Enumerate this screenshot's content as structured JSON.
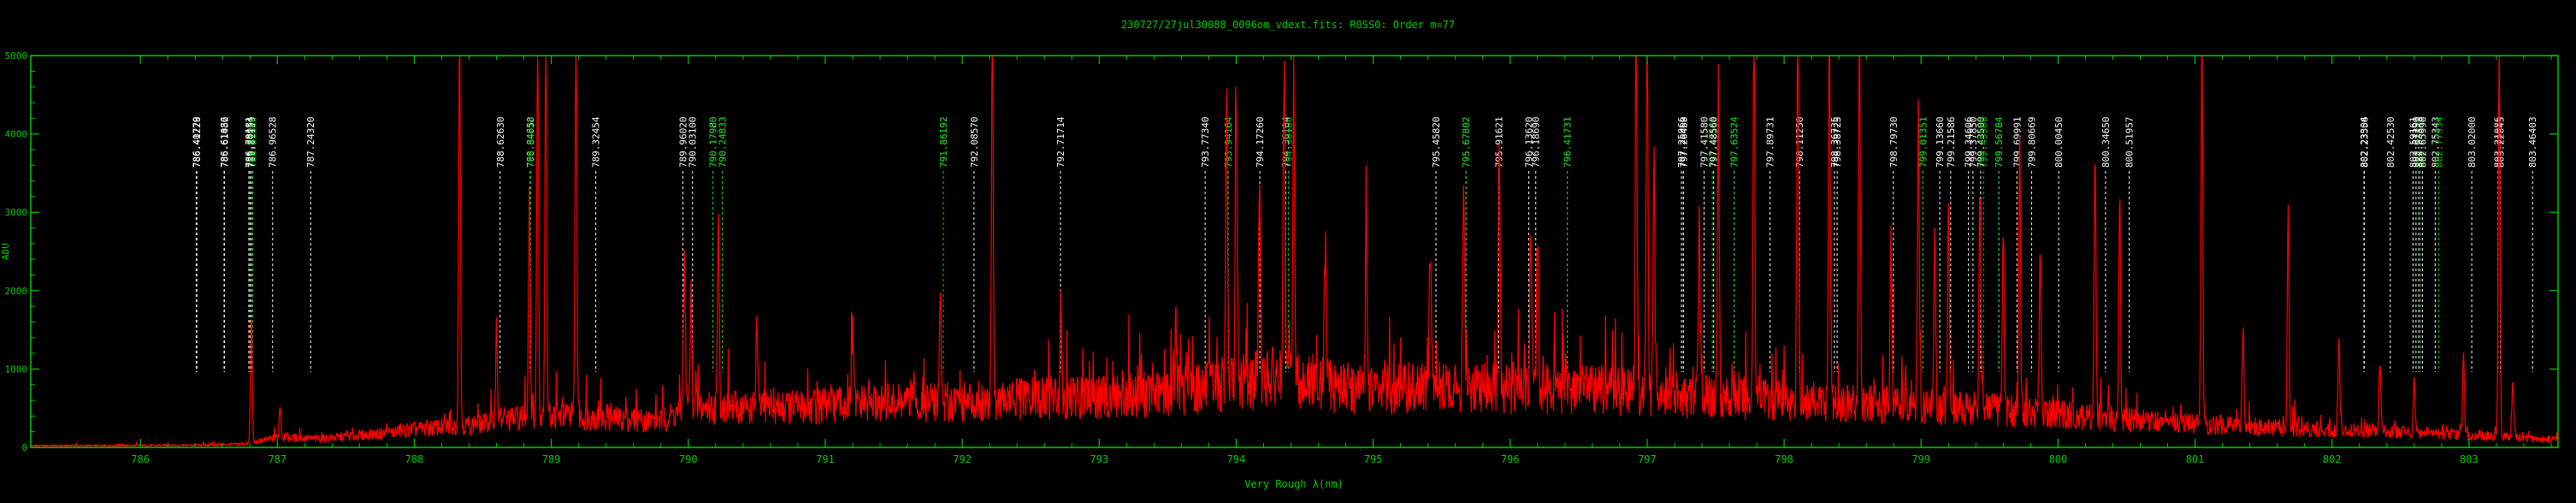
{
  "chart_data": {
    "type": "line",
    "title": "230727/27jul30088_0096om_vdext.fits: R0SS0: Order m=77",
    "xlabel": "Very Rough λ(nm)",
    "ylabel": "ADU",
    "xlim": [
      785.2,
      803.65
    ],
    "ylim": [
      0,
      5000
    ],
    "x_ticks": [
      "786",
      "787",
      "788",
      "789",
      "790",
      "791",
      "792",
      "793",
      "794",
      "795",
      "796",
      "797",
      "798",
      "799",
      "800",
      "801",
      "802",
      "803"
    ],
    "y_ticks": [
      "0",
      "1000",
      "2000",
      "3000",
      "4000",
      "5000"
    ],
    "grid": false,
    "colors": {
      "background": "#000000",
      "axes": "#00cc00",
      "spectrum": "#ff0000",
      "line_white": "#ffffff",
      "line_green": "#00cc00"
    },
    "annotations": [
      {
        "wl": 786.40779,
        "label": "786.40779",
        "color": "white"
      },
      {
        "wl": 786.41228,
        "label": "786.41228",
        "color": "white"
      },
      {
        "wl": 786.61086,
        "label": "786.61086",
        "color": "white"
      },
      {
        "wl": 786.61432,
        "label": "786.61432",
        "color": "white"
      },
      {
        "wl": 786.79181,
        "label": "786.79181",
        "color": "white"
      },
      {
        "wl": 786.80054,
        "label": "786.80054",
        "color": "white"
      },
      {
        "wl": 786.81159,
        "label": "786.81159",
        "color": "white"
      },
      {
        "wl": 786.81956,
        "label": "786.81956",
        "color": "green"
      },
      {
        "wl": 786.96528,
        "label": "786.96528",
        "color": "white"
      },
      {
        "wl": 787.2432,
        "label": "787.24320",
        "color": "white"
      },
      {
        "wl": 788.6263,
        "label": "788.62630",
        "color": "white"
      },
      {
        "wl": 788.84658,
        "label": "788.84658",
        "color": "white"
      },
      {
        "wl": 788.84925,
        "label": "788.84925",
        "color": "green"
      },
      {
        "wl": 789.32454,
        "label": "789.32454",
        "color": "white"
      },
      {
        "wl": 789.9602,
        "label": "789.96020",
        "color": "white"
      },
      {
        "wl": 790.031,
        "label": "790.03100",
        "color": "white"
      },
      {
        "wl": 790.1798,
        "label": "790.17980",
        "color": "white"
      },
      {
        "wl": 790.1795,
        "label": "790.17950",
        "color": "green"
      },
      {
        "wl": 790.24833,
        "label": "790.24833",
        "color": "white"
      },
      {
        "wl": 790.24833,
        "label": "790.24833",
        "color": "green"
      },
      {
        "wl": 791.86192,
        "label": "791.86192",
        "color": "white"
      },
      {
        "wl": 791.86192,
        "label": "791.86192",
        "color": "green"
      },
      {
        "wl": 792.0857,
        "label": "792.08570",
        "color": "white"
      },
      {
        "wl": 792.71714,
        "label": "792.71714",
        "color": "white"
      },
      {
        "wl": 793.7734,
        "label": "793.77340",
        "color": "white"
      },
      {
        "wl": 793.94164,
        "label": "793.94164",
        "color": "white"
      },
      {
        "wl": 793.94164,
        "label": "793.94164",
        "color": "green"
      },
      {
        "wl": 794.1726,
        "label": "794.17260",
        "color": "white"
      },
      {
        "wl": 794.36104,
        "label": "794.36104",
        "color": "white"
      },
      {
        "wl": 794.38106,
        "label": "794.38106",
        "color": "green"
      },
      {
        "wl": 795.4582,
        "label": "795.45820",
        "color": "white"
      },
      {
        "wl": 795.67802,
        "label": "795.67802",
        "color": "white"
      },
      {
        "wl": 795.67802,
        "label": "795.67802",
        "color": "green"
      },
      {
        "wl": 795.91621,
        "label": "795.91621",
        "color": "white"
      },
      {
        "wl": 796.1362,
        "label": "796.13620",
        "color": "white"
      },
      {
        "wl": 796.1869,
        "label": "796.18690",
        "color": "white"
      },
      {
        "wl": 796.41731,
        "label": "796.41731",
        "color": "white"
      },
      {
        "wl": 796.41731,
        "label": "796.41731",
        "color": "green"
      },
      {
        "wl": 797.25066,
        "label": "797.25066",
        "color": "white"
      },
      {
        "wl": 797.2645,
        "label": "797.26450",
        "color": "white"
      },
      {
        "wl": 797.26463,
        "label": "797.26463",
        "color": "white"
      },
      {
        "wl": 797.4158,
        "label": "797.41580",
        "color": "white"
      },
      {
        "wl": 797.47568,
        "label": "797.47568",
        "color": "green"
      },
      {
        "wl": 797.4856,
        "label": "797.48560",
        "color": "white"
      },
      {
        "wl": 797.63524,
        "label": "797.63524",
        "color": "white"
      },
      {
        "wl": 797.63524,
        "label": "797.63524",
        "color": "green"
      },
      {
        "wl": 797.89731,
        "label": "797.89731",
        "color": "white"
      },
      {
        "wl": 798.1125,
        "label": "798.11250",
        "color": "white"
      },
      {
        "wl": 798.36735,
        "label": "798.36735",
        "color": "white"
      },
      {
        "wl": 798.38725,
        "label": "798.38725",
        "color": "white"
      },
      {
        "wl": 798.7973,
        "label": "798.79730",
        "color": "white"
      },
      {
        "wl": 799.01351,
        "label": "799.01351",
        "color": "white"
      },
      {
        "wl": 799.01351,
        "label": "799.01351",
        "color": "green"
      },
      {
        "wl": 799.1366,
        "label": "799.13660",
        "color": "white"
      },
      {
        "wl": 799.21586,
        "label": "799.21586",
        "color": "white"
      },
      {
        "wl": 799.34606,
        "label": "799.34606",
        "color": "white"
      },
      {
        "wl": 799.3785,
        "label": "799.37850",
        "color": "white"
      },
      {
        "wl": 799.435,
        "label": "799.43500",
        "color": "white"
      },
      {
        "wl": 799.45568,
        "label": "799.45568",
        "color": "green"
      },
      {
        "wl": 799.56784,
        "label": "799.56784",
        "color": "white"
      },
      {
        "wl": 799.56784,
        "label": "799.56784",
        "color": "green"
      },
      {
        "wl": 799.69991,
        "label": "799.69991",
        "color": "white"
      },
      {
        "wl": 799.80669,
        "label": "799.80669",
        "color": "white"
      },
      {
        "wl": 800.0045,
        "label": "800.00450",
        "color": "white"
      },
      {
        "wl": 800.3465,
        "label": "800.34650",
        "color": "white"
      },
      {
        "wl": 800.51957,
        "label": "800.51957",
        "color": "white"
      },
      {
        "wl": 802.23304,
        "label": "802.23304",
        "color": "white"
      },
      {
        "wl": 802.23556,
        "label": "802.23556",
        "color": "white"
      },
      {
        "wl": 802.4253,
        "label": "802.42530",
        "color": "white"
      },
      {
        "wl": 802.59161,
        "label": "802.59161",
        "color": "white"
      },
      {
        "wl": 802.6129,
        "label": "802.61290",
        "color": "white"
      },
      {
        "wl": 802.6334,
        "label": "802.63340",
        "color": "white"
      },
      {
        "wl": 802.64505,
        "label": "802.64505",
        "color": "green"
      },
      {
        "wl": 802.6599,
        "label": "802.65990",
        "color": "white"
      },
      {
        "wl": 802.75343,
        "label": "802.75343",
        "color": "white"
      },
      {
        "wl": 802.77934,
        "label": "802.77934",
        "color": "green"
      },
      {
        "wl": 803.02,
        "label": "803.02000",
        "color": "white"
      },
      {
        "wl": 803.21086,
        "label": "803.21086",
        "color": "white"
      },
      {
        "wl": 803.22845,
        "label": "803.22845",
        "color": "white"
      },
      {
        "wl": 803.46403,
        "label": "803.46403",
        "color": "white"
      }
    ],
    "series": [
      {
        "style": "spectrum",
        "baseline": [
          [
            785.2,
            20
          ],
          [
            786.0,
            25
          ],
          [
            786.5,
            30
          ],
          [
            786.8,
            45
          ],
          [
            787.0,
            130
          ],
          [
            787.3,
            110
          ],
          [
            787.8,
            180
          ],
          [
            788.0,
            230
          ],
          [
            788.5,
            300
          ],
          [
            788.9,
            420
          ],
          [
            789.3,
            380
          ],
          [
            789.8,
            340
          ],
          [
            790.0,
            520
          ],
          [
            790.5,
            500
          ],
          [
            791.0,
            530
          ],
          [
            791.5,
            560
          ],
          [
            792.0,
            580
          ],
          [
            792.5,
            620
          ],
          [
            793.0,
            640
          ],
          [
            793.5,
            700
          ],
          [
            793.9,
            800
          ],
          [
            794.3,
            900
          ],
          [
            794.6,
            820
          ],
          [
            795.0,
            720
          ],
          [
            795.5,
            760
          ],
          [
            796.0,
            760
          ],
          [
            796.4,
            760
          ],
          [
            796.8,
            720
          ],
          [
            797.2,
            640
          ],
          [
            797.6,
            640
          ],
          [
            798.0,
            600
          ],
          [
            798.5,
            560
          ],
          [
            799.0,
            520
          ],
          [
            799.5,
            480
          ],
          [
            800.0,
            420
          ],
          [
            800.5,
            360
          ],
          [
            801.0,
            300
          ],
          [
            801.5,
            260
          ],
          [
            802.0,
            230
          ],
          [
            802.5,
            200
          ],
          [
            803.0,
            160
          ],
          [
            803.4,
            120
          ],
          [
            803.65,
            100
          ]
        ],
        "peaks": [
          [
            786.81,
            1650
          ],
          [
            787.02,
            420
          ],
          [
            788.33,
            5000
          ],
          [
            788.6,
            1250
          ],
          [
            788.84,
            2900
          ],
          [
            788.9,
            5000
          ],
          [
            788.96,
            5000
          ],
          [
            789.18,
            5000
          ],
          [
            789.97,
            1950
          ],
          [
            790.02,
            1450
          ],
          [
            790.22,
            2350
          ],
          [
            790.5,
            1100
          ],
          [
            791.2,
            950
          ],
          [
            791.84,
            1400
          ],
          [
            792.22,
            5000
          ],
          [
            792.72,
            1300
          ],
          [
            793.56,
            950
          ],
          [
            793.93,
            3900
          ],
          [
            794.0,
            3300
          ],
          [
            794.17,
            2700
          ],
          [
            794.35,
            4000
          ],
          [
            794.42,
            4100
          ],
          [
            794.65,
            1800
          ],
          [
            794.95,
            2200
          ],
          [
            795.42,
            1600
          ],
          [
            795.66,
            2900
          ],
          [
            795.92,
            3100
          ],
          [
            796.15,
            1800
          ],
          [
            796.2,
            2000
          ],
          [
            796.92,
            5000
          ],
          [
            797.0,
            5000
          ],
          [
            797.05,
            3300
          ],
          [
            797.38,
            2400
          ],
          [
            797.52,
            3600
          ],
          [
            797.78,
            5000
          ],
          [
            798.1,
            5000
          ],
          [
            798.33,
            5000
          ],
          [
            798.55,
            5000
          ],
          [
            798.78,
            2200
          ],
          [
            798.98,
            3700
          ],
          [
            799.1,
            2200
          ],
          [
            799.2,
            2600
          ],
          [
            799.43,
            3000
          ],
          [
            799.6,
            2300
          ],
          [
            799.72,
            3400
          ],
          [
            799.87,
            2000
          ],
          [
            800.27,
            3300
          ],
          [
            800.45,
            2800
          ],
          [
            801.05,
            5000
          ],
          [
            801.35,
            1300
          ],
          [
            801.68,
            2800
          ],
          [
            802.05,
            1150
          ],
          [
            802.35,
            800
          ],
          [
            802.6,
            650
          ],
          [
            802.96,
            1000
          ],
          [
            803.22,
            5000
          ],
          [
            803.32,
            700
          ]
        ]
      }
    ]
  }
}
